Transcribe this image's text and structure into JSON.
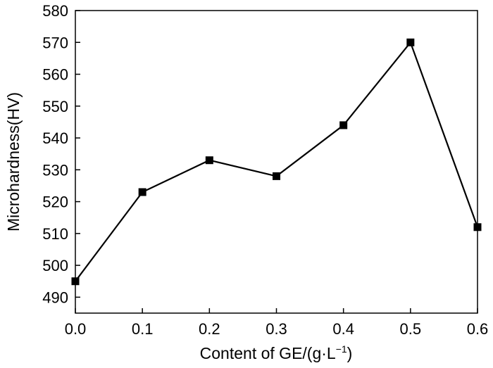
{
  "chart_data": {
    "type": "line",
    "xlabel": "Content of GE/(g·L",
    "xlabel_superscript": "−1",
    "xlabel_suffix": ")",
    "ylabel": "Microhardness(HV)",
    "xlim": [
      0.0,
      0.6
    ],
    "ylim": [
      485,
      580
    ],
    "x_ticks": [
      "0.0",
      "0.1",
      "0.2",
      "0.3",
      "0.4",
      "0.5",
      "0.6"
    ],
    "y_ticks": [
      "490",
      "500",
      "510",
      "520",
      "530",
      "540",
      "550",
      "560",
      "570",
      "580"
    ],
    "grid": false,
    "series": [
      {
        "marker": "square",
        "color": "#000000",
        "x": [
          0.0,
          0.1,
          0.2,
          0.3,
          0.4,
          0.5,
          0.6
        ],
        "y": [
          495,
          523,
          533,
          528,
          544,
          570,
          512
        ]
      }
    ]
  }
}
